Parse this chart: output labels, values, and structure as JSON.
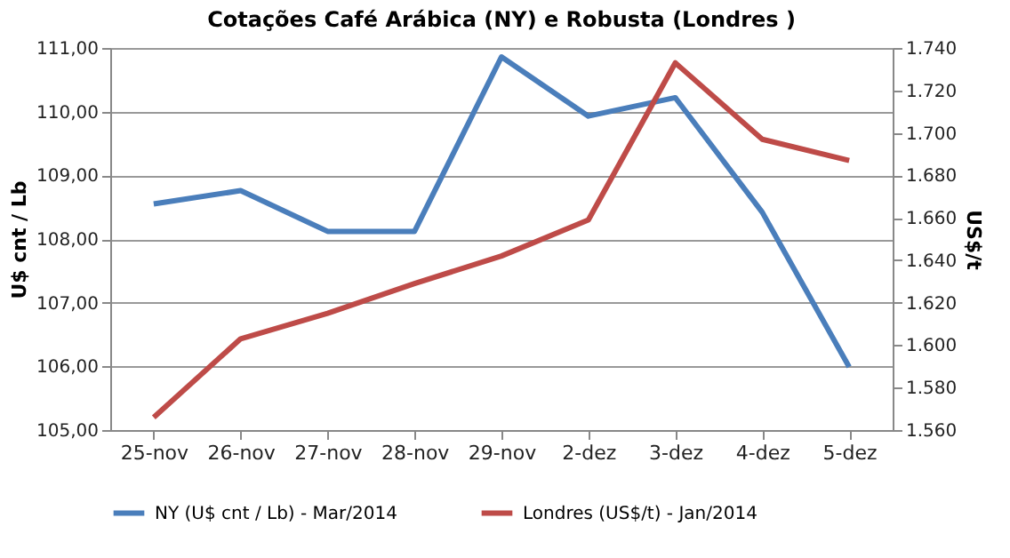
{
  "chart_data": {
    "type": "line",
    "title": "Cotações Café Arábica (NY) e Robusta (Londres )",
    "categories": [
      "25-nov",
      "26-nov",
      "27-nov",
      "28-nov",
      "29-nov",
      "2-dez",
      "3-dez",
      "4-dez",
      "5-dez"
    ],
    "series": [
      {
        "name": "NY (U$ cnt / Lb) - Mar/2014",
        "color": "#4a7ebb",
        "values": [
          108.55,
          108.76,
          108.12,
          108.12,
          110.86,
          109.93,
          110.22,
          108.42,
          105.99
        ]
      },
      {
        "name": "Londres (US$/t) - Jan/2014",
        "color": "#be4b48",
        "axis": "y2",
        "values": [
          1566,
          1603,
          1615,
          1629,
          1642,
          1659,
          1733,
          1697,
          1687
        ]
      }
    ],
    "ylabel": "U$ cnt / Lb",
    "y2label": "US$/t",
    "ylim": [
      105,
      111
    ],
    "yticks": [
      {
        "value": 105,
        "label": "105,00"
      },
      {
        "value": 106,
        "label": "106,00"
      },
      {
        "value": 107,
        "label": "107,00"
      },
      {
        "value": 108,
        "label": "108,00"
      },
      {
        "value": 109,
        "label": "109,00"
      },
      {
        "value": 110,
        "label": "110,00"
      },
      {
        "value": 111,
        "label": "111,00"
      }
    ],
    "y2lim": [
      1560,
      1740
    ],
    "y2ticks": [
      {
        "value": 1560,
        "label": "1.560"
      },
      {
        "value": 1580,
        "label": "1.580"
      },
      {
        "value": 1600,
        "label": "1.600"
      },
      {
        "value": 1620,
        "label": "1.620"
      },
      {
        "value": 1640,
        "label": "1.640"
      },
      {
        "value": 1660,
        "label": "1.660"
      },
      {
        "value": 1680,
        "label": "1.680"
      },
      {
        "value": 1700,
        "label": "1.700"
      },
      {
        "value": 1720,
        "label": "1.720"
      },
      {
        "value": 1740,
        "label": "1.740"
      }
    ],
    "grid": "y",
    "legend": "bottom",
    "marker": "none",
    "line_style": "solid"
  }
}
